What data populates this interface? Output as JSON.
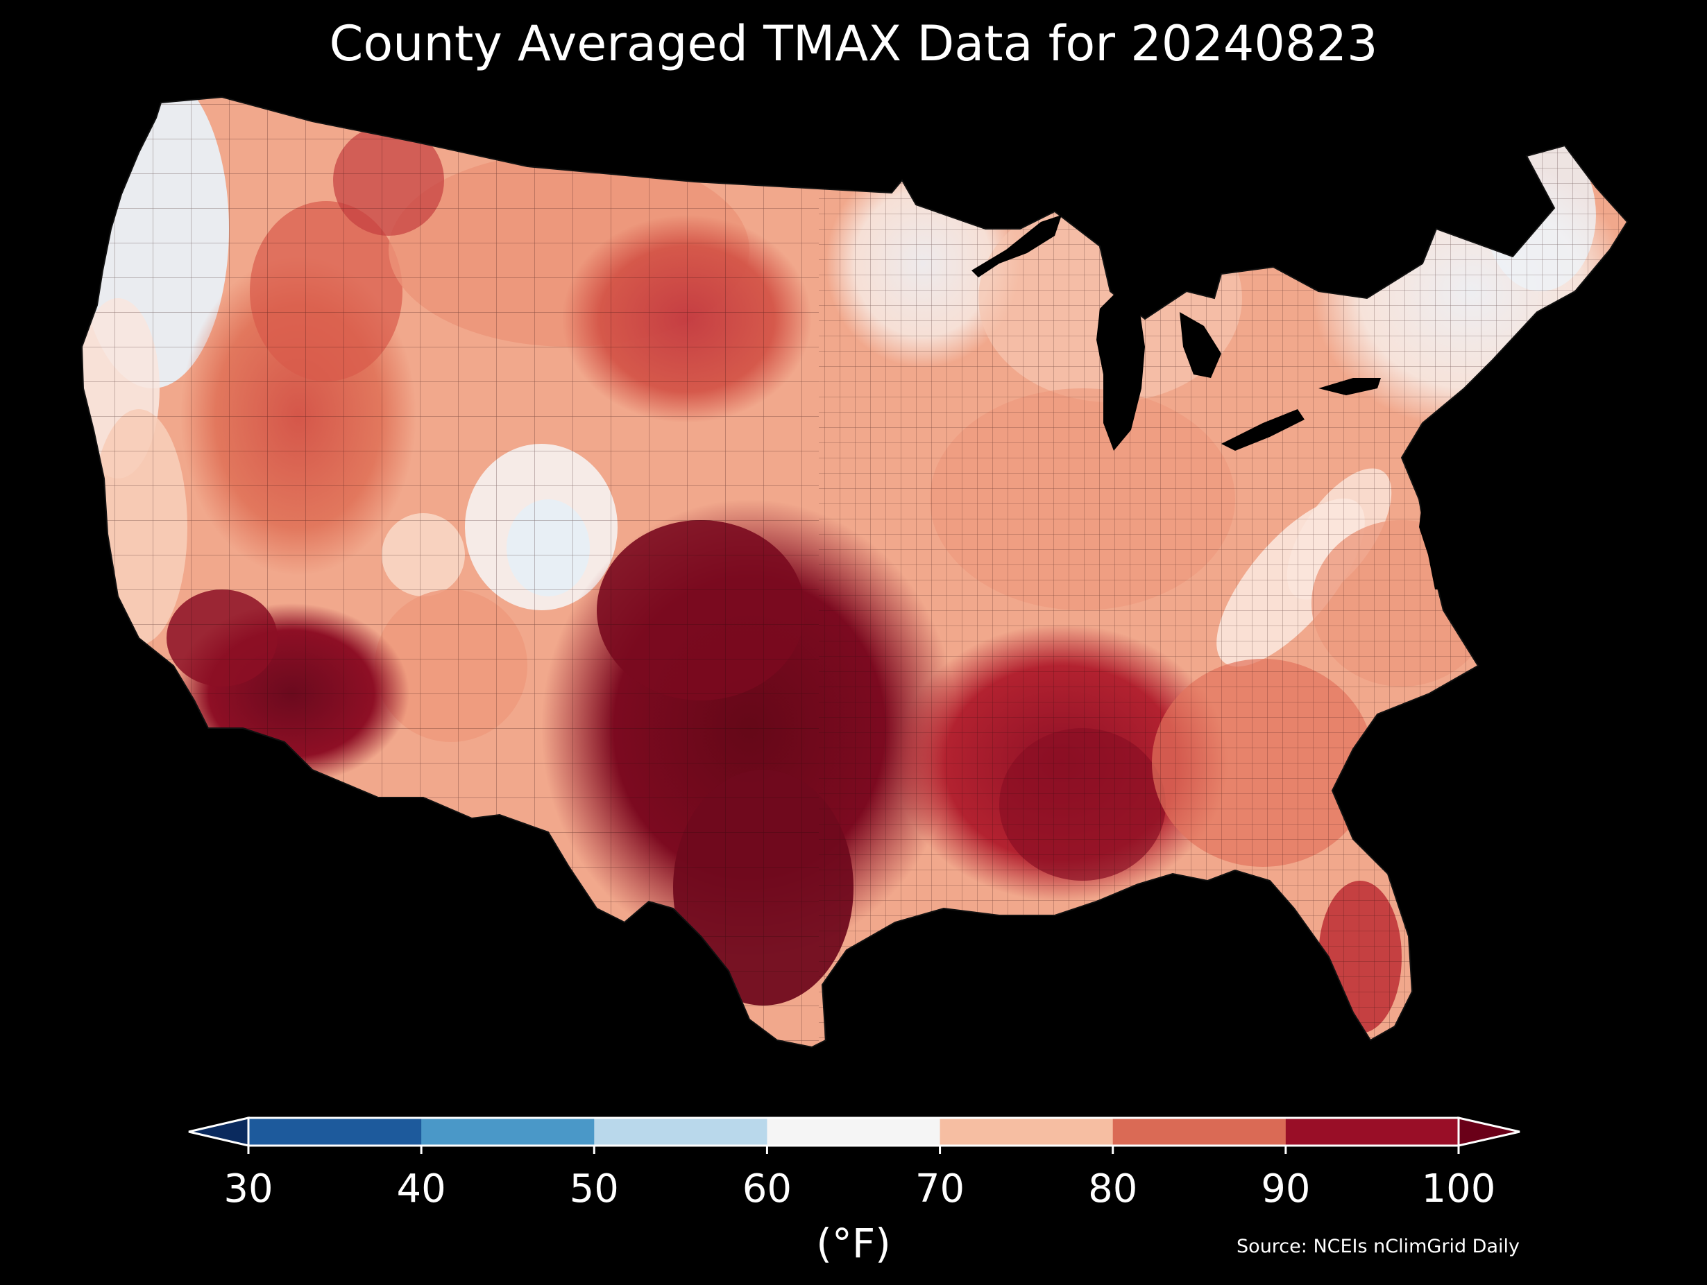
{
  "title": "County Averaged TMAX Data for 20240823",
  "map": {
    "region": "Contiguous United States counties",
    "background_color": "#000000",
    "border_color": "#1a1a1a",
    "regions": [
      {
        "name": "Pacific Northwest coast",
        "tmax_f": 62,
        "color": "#eef3f8"
      },
      {
        "name": "California coast",
        "tmax_f": 68,
        "color": "#fbe3d6"
      },
      {
        "name": "Great Basin",
        "tmax_f": 84,
        "color": "#de6b52"
      },
      {
        "name": "Idaho / Montana west",
        "tmax_f": 83,
        "color": "#e37c62"
      },
      {
        "name": "Colorado Rockies",
        "tmax_f": 64,
        "color": "#f3f1f1"
      },
      {
        "name": "Desert Southwest",
        "tmax_f": 98,
        "color": "#80081f"
      },
      {
        "name": "Northern Plains",
        "tmax_f": 86,
        "color": "#cf4b44"
      },
      {
        "name": "Southern Plains / Texas",
        "tmax_f": 99,
        "color": "#6b0a1e"
      },
      {
        "name": "Upper Midwest",
        "tmax_f": 72,
        "color": "#f6c8b3"
      },
      {
        "name": "Great Lakes / Ohio Valley",
        "tmax_f": 74,
        "color": "#f3ae92"
      },
      {
        "name": "Appalachians",
        "tmax_f": 68,
        "color": "#fbe0d2"
      },
      {
        "name": "Southeast / Gulf Coast",
        "tmax_f": 92,
        "color": "#a9192c"
      },
      {
        "name": "Northeast / New England",
        "tmax_f": 66,
        "color": "#f6ece8"
      },
      {
        "name": "Florida",
        "tmax_f": 88,
        "color": "#c83b3c"
      }
    ]
  },
  "colorbar": {
    "ticks": [
      "30",
      "40",
      "50",
      "60",
      "70",
      "80",
      "90",
      "100"
    ],
    "unit": "(°F)",
    "extend": "both",
    "bins": [
      {
        "range": "<30",
        "color": "#0a2a5e"
      },
      {
        "range": "30-40",
        "color": "#1d5a9c"
      },
      {
        "range": "40-50",
        "color": "#4a98c8"
      },
      {
        "range": "50-60",
        "color": "#b9d8eb"
      },
      {
        "range": "60-70",
        "color": "#f5f5f5"
      },
      {
        "range": "70-80",
        "color": "#f6bea2"
      },
      {
        "range": "80-90",
        "color": "#da6a55"
      },
      {
        "range": "90-100",
        "color": "#990e27"
      },
      {
        "range": ">100",
        "color": "#6a0018"
      }
    ]
  },
  "source": "Source: NCEIs nClimGrid Daily"
}
